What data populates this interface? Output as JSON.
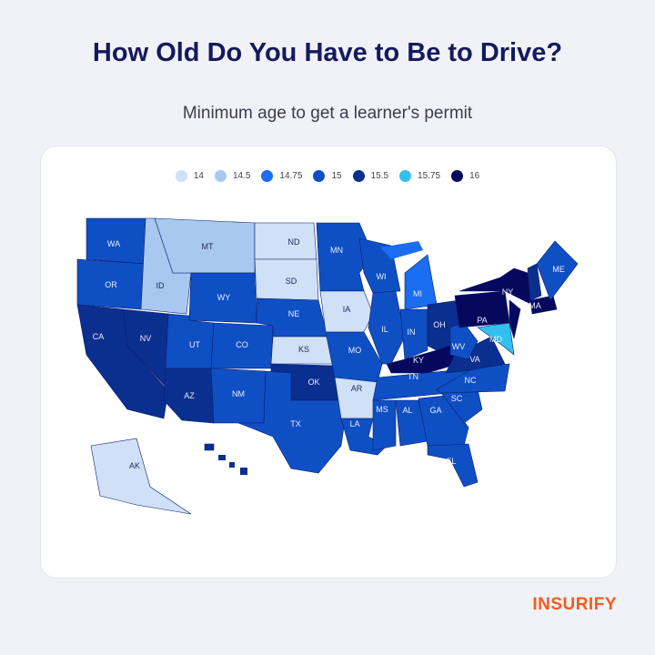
{
  "title": "How Old Do You Have to Be to Drive?",
  "subtitle": "Minimum age to get a learner's permit",
  "logo": "INSURIFY",
  "chart_data": {
    "type": "choropleth",
    "legend": [
      {
        "label": "14",
        "value": 14,
        "color": "#cfe0f7"
      },
      {
        "label": "14.5",
        "value": 14.5,
        "color": "#a9c8f0"
      },
      {
        "label": "14.75",
        "value": 14.75,
        "color": "#1a6cf0"
      },
      {
        "label": "15",
        "value": 15,
        "color": "#0f4fc4"
      },
      {
        "label": "15.5",
        "value": 15.5,
        "color": "#0b2f8f"
      },
      {
        "label": "15.75",
        "value": 15.75,
        "color": "#33c0f0"
      },
      {
        "label": "16",
        "value": 16,
        "color": "#06085e"
      }
    ],
    "states": [
      {
        "code": "WA",
        "value": 15
      },
      {
        "code": "OR",
        "value": 15
      },
      {
        "code": "CA",
        "value": 15.5
      },
      {
        "code": "NV",
        "value": 15.5
      },
      {
        "code": "ID",
        "value": 14.5
      },
      {
        "code": "MT",
        "value": 14.5
      },
      {
        "code": "WY",
        "value": 15
      },
      {
        "code": "UT",
        "value": 15
      },
      {
        "code": "CO",
        "value": 15
      },
      {
        "code": "AZ",
        "value": 15.5
      },
      {
        "code": "NM",
        "value": 15
      },
      {
        "code": "ND",
        "value": 14
      },
      {
        "code": "SD",
        "value": 14
      },
      {
        "code": "NE",
        "value": 15
      },
      {
        "code": "KS",
        "value": 14
      },
      {
        "code": "OK",
        "value": 15.5
      },
      {
        "code": "TX",
        "value": 15
      },
      {
        "code": "MN",
        "value": 15
      },
      {
        "code": "IA",
        "value": 14
      },
      {
        "code": "MO",
        "value": 15
      },
      {
        "code": "AR",
        "value": 14
      },
      {
        "code": "LA",
        "value": 15
      },
      {
        "code": "WI",
        "value": 15
      },
      {
        "code": "IL",
        "value": 15
      },
      {
        "code": "MI",
        "value": 14.75
      },
      {
        "code": "IN",
        "value": 15
      },
      {
        "code": "OH",
        "value": 15.5
      },
      {
        "code": "KY",
        "value": 16
      },
      {
        "code": "TN",
        "value": 15
      },
      {
        "code": "MS",
        "value": 15
      },
      {
        "code": "AL",
        "value": 15
      },
      {
        "code": "GA",
        "value": 15
      },
      {
        "code": "FL",
        "value": 15
      },
      {
        "code": "SC",
        "value": 15
      },
      {
        "code": "NC",
        "value": 15
      },
      {
        "code": "VA",
        "value": 15.5
      },
      {
        "code": "WV",
        "value": 15
      },
      {
        "code": "PA",
        "value": 16
      },
      {
        "code": "NY",
        "value": 16
      },
      {
        "code": "MD",
        "value": 15.75
      },
      {
        "code": "NJ",
        "value": 16
      },
      {
        "code": "NH",
        "value": 15.5
      },
      {
        "code": "MA",
        "value": 16
      },
      {
        "code": "ME",
        "value": 15
      },
      {
        "code": "AK",
        "value": 14
      },
      {
        "code": "HI",
        "value": 15.5
      }
    ]
  }
}
